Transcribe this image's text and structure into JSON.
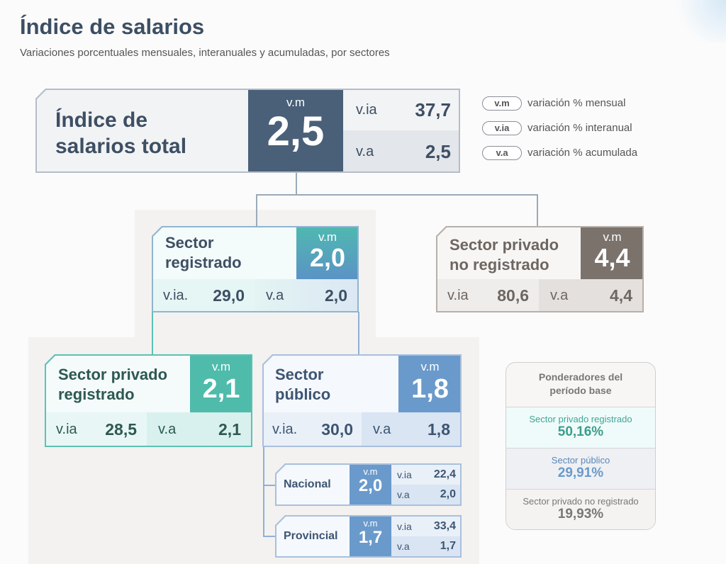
{
  "header": {
    "title": "Índice de salarios",
    "subtitle": "Variaciones porcentuales mensuales, interanuales y acumuladas, por sectores"
  },
  "legend": [
    {
      "abbr": "v.m",
      "text": "variación % mensual"
    },
    {
      "abbr": "v.ia",
      "text": "variación % interanual"
    },
    {
      "abbr": "v.a",
      "text": "variación % acumulada"
    }
  ],
  "total": {
    "label_l1": "Índice de",
    "label_l2": "salarios total",
    "vm_label": "v.m",
    "vm": "2,5",
    "via_label": "v.ia",
    "via": "37,7",
    "va_label": "v.a",
    "va": "2,5"
  },
  "registrado": {
    "label_l1": "Sector",
    "label_l2": "registrado",
    "vm_label": "v.m",
    "vm": "2,0",
    "via_label": "v.ia.",
    "via": "29,0",
    "va_label": "v.a",
    "va": "2,0"
  },
  "no_registrado": {
    "label_l1": "Sector privado",
    "label_l2": "no registrado",
    "vm_label": "v.m",
    "vm": "4,4",
    "via_label": "v.ia",
    "via": "80,6",
    "va_label": "v.a",
    "va": "4,4"
  },
  "privado_registrado": {
    "label_l1": "Sector privado",
    "label_l2": "registrado",
    "vm_label": "v.m",
    "vm": "2,1",
    "via_label": "v.ia",
    "via": "28,5",
    "va_label": "v.a",
    "va": "2,1"
  },
  "publico": {
    "label_l1": "Sector",
    "label_l2": "público",
    "vm_label": "v.m",
    "vm": "1,8",
    "via_label": "v.ia.",
    "via": "30,0",
    "va_label": "v.a",
    "va": "1,8"
  },
  "nacional": {
    "label": "Nacional",
    "vm_label": "v.m",
    "vm": "2,0",
    "via_label": "v.ia",
    "via": "22,4",
    "va_label": "v.a",
    "va": "2,0"
  },
  "provincial": {
    "label": "Provincial",
    "vm_label": "v.m",
    "vm": "1,7",
    "via_label": "v.ia",
    "via": "33,4",
    "va_label": "v.a",
    "va": "1,7"
  },
  "ponderadores": {
    "title_l1": "Ponderadores del",
    "title_l2": "período base",
    "rows": [
      {
        "label": "Sector privado registrado",
        "value": "50,16%"
      },
      {
        "label": "Sector público",
        "value": "29,91%"
      },
      {
        "label": "Sector privado no registrado",
        "value": "19,93%"
      }
    ]
  },
  "colors": {
    "total": "#4a6079",
    "registrado": "#4fb9b0",
    "no_registrado": "#7b726c",
    "privado_registrado": "#4fbbab",
    "publico": "#6a9acb"
  }
}
